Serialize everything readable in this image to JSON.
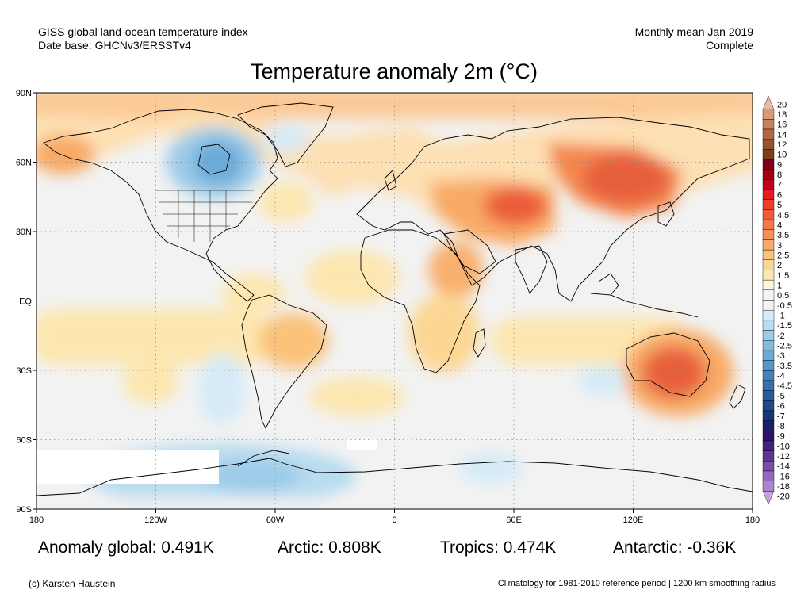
{
  "header": {
    "line1_left": "GISS global land-ocean temperature index",
    "line2_left": "Date base: GHCNv3/ERSSTv4",
    "line1_right": "Monthly mean Jan 2019",
    "line2_right": "Complete"
  },
  "title": "Temperature anomaly 2m (°C)",
  "map": {
    "lat_labels": [
      "90N",
      "60N",
      "30N",
      "EQ",
      "30S",
      "60S",
      "90S"
    ],
    "lon_labels": [
      "180",
      "120W",
      "60W",
      "0",
      "60E",
      "120E",
      "180"
    ],
    "background_color": "#f2f2f2",
    "regions": [
      {
        "name": "arctic-warm-band",
        "color": "#fbc995"
      },
      {
        "name": "asia-heat",
        "color": "#e7603e"
      },
      {
        "name": "australia-heat",
        "color": "#e7603e"
      },
      {
        "name": "canada-cold",
        "color": "#6cabd8"
      },
      {
        "name": "antarctic-cold",
        "color": "#a9d3ef"
      }
    ]
  },
  "colorbar": {
    "levels": [
      "20",
      "18",
      "16",
      "14",
      "12",
      "10",
      "9",
      "8",
      "7",
      "6",
      "5",
      "4.5",
      "4",
      "3.5",
      "3",
      "2.5",
      "2",
      "1.5",
      "1",
      "0.5",
      "-0.5",
      "-1",
      "-1.5",
      "-2",
      "-2.5",
      "-3",
      "-3.5",
      "-4",
      "-4.5",
      "-5",
      "-6",
      "-7",
      "-8",
      "-9",
      "-10",
      "-12",
      "-14",
      "-16",
      "-18",
      "-20"
    ],
    "colors": [
      "#e6b9a3",
      "#d99a7c",
      "#c9805d",
      "#b26543",
      "#99502f",
      "#7c3d1f",
      "#7d0018",
      "#a30014",
      "#c4001e",
      "#e21c22",
      "#ec3d2d",
      "#f05a3a",
      "#f47748",
      "#f69155",
      "#f8aa66",
      "#fbc27a",
      "#fcd794",
      "#fde7b0",
      "#fff6d8",
      "#f4f4f4",
      "#f4f4f4",
      "#d6ebf7",
      "#b8dcf0",
      "#9ccbe8",
      "#82bade",
      "#6ca9d4",
      "#5597c9",
      "#4383bc",
      "#3570ad",
      "#285c9e",
      "#1e498c",
      "#163678",
      "#1c1f66",
      "#2e136b",
      "#46207f",
      "#5f3593",
      "#7a4ea8",
      "#9468bc",
      "#ad84cf",
      "#c6a3e0"
    ]
  },
  "stats": {
    "global": "Anomaly global: 0.491K",
    "arctic": "Arctic: 0.808K",
    "tropics": "Tropics: 0.474K",
    "antarctic": "Antarctic: -0.36K"
  },
  "footer": {
    "credit": "(c) Karsten Haustein",
    "climatology": "Climatology for 1981-2010 reference period | 1200 km smoothing radius"
  }
}
